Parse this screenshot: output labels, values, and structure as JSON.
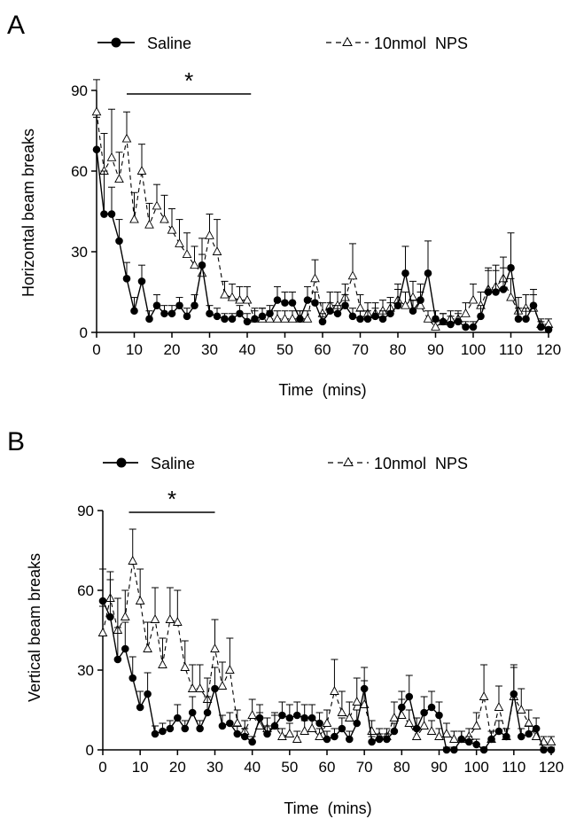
{
  "chart_data": [
    {
      "panel_letter": "A",
      "type": "line",
      "xlabel": "Time  (mins)",
      "ylabel": "Horizontal beam breaks",
      "xlim": [
        0,
        120
      ],
      "ylim": [
        0,
        90
      ],
      "xticks": [
        0,
        10,
        20,
        30,
        40,
        50,
        60,
        70,
        80,
        90,
        100,
        110,
        120
      ],
      "yticks": [
        0,
        30,
        60,
        90
      ],
      "significance": {
        "label": "*",
        "x_range": [
          8,
          41
        ]
      },
      "x": [
        0,
        2,
        4,
        6,
        8,
        10,
        12,
        14,
        16,
        18,
        20,
        22,
        24,
        26,
        28,
        30,
        32,
        34,
        36,
        38,
        40,
        42,
        44,
        46,
        48,
        50,
        52,
        54,
        56,
        58,
        60,
        62,
        64,
        66,
        68,
        70,
        72,
        74,
        76,
        78,
        80,
        82,
        84,
        86,
        88,
        90,
        92,
        94,
        96,
        98,
        100,
        102,
        104,
        106,
        108,
        110,
        112,
        114,
        116,
        118,
        120
      ],
      "series": [
        {
          "name": "Saline",
          "marker": "filled-circle",
          "line": "solid",
          "values": [
            68,
            44,
            44,
            34,
            20,
            8,
            19,
            5,
            10,
            7,
            7,
            10,
            6,
            10,
            25,
            7,
            6,
            5,
            5,
            7,
            4,
            5,
            6,
            7,
            12,
            11,
            11,
            5,
            12,
            11,
            4,
            8,
            7,
            10,
            6,
            5,
            5,
            6,
            5,
            7,
            10,
            22,
            8,
            12,
            22,
            5,
            4,
            3,
            4,
            2,
            2,
            6,
            15,
            15,
            16,
            24,
            5,
            5,
            10,
            2,
            1
          ],
          "err": [
            12,
            16,
            10,
            8,
            6,
            5,
            6,
            3,
            4,
            3,
            3,
            3,
            3,
            4,
            10,
            3,
            3,
            2,
            2,
            3,
            3,
            3,
            3,
            3,
            5,
            4,
            4,
            3,
            5,
            4,
            3,
            3,
            3,
            4,
            3,
            3,
            3,
            3,
            3,
            4,
            6,
            10,
            4,
            6,
            12,
            3,
            3,
            3,
            3,
            2,
            2,
            4,
            8,
            8,
            8,
            13,
            4,
            4,
            6,
            2,
            1
          ]
        },
        {
          "name": "10nmol  NPS",
          "marker": "open-triangle",
          "line": "dashed",
          "values": [
            82,
            60,
            65,
            57,
            72,
            42,
            60,
            40,
            47,
            42,
            38,
            33,
            29,
            25,
            22,
            36,
            30,
            14,
            13,
            12,
            12,
            5,
            5,
            5,
            5,
            5,
            5,
            5,
            5,
            20,
            7,
            10,
            10,
            13,
            21,
            9,
            7,
            7,
            8,
            9,
            12,
            10,
            13,
            10,
            5,
            2,
            4,
            5,
            5,
            7,
            12,
            10,
            16,
            17,
            20,
            13,
            8,
            9,
            9,
            3,
            3
          ],
          "err": [
            12,
            14,
            18,
            10,
            10,
            10,
            10,
            8,
            8,
            9,
            8,
            9,
            8,
            7,
            7,
            8,
            12,
            5,
            5,
            5,
            5,
            4,
            4,
            3,
            3,
            3,
            3,
            3,
            3,
            7,
            4,
            5,
            5,
            5,
            12,
            5,
            4,
            4,
            4,
            4,
            6,
            5,
            6,
            5,
            3,
            2,
            3,
            3,
            3,
            4,
            6,
            5,
            8,
            8,
            8,
            7,
            5,
            5,
            5,
            2,
            2
          ]
        }
      ]
    },
    {
      "panel_letter": "B",
      "type": "line",
      "xlabel": "Time  (mins)",
      "ylabel": "Vertical beam breaks",
      "xlim": [
        0,
        120
      ],
      "ylim": [
        0,
        90
      ],
      "xticks": [
        0,
        10,
        20,
        30,
        40,
        50,
        60,
        70,
        80,
        90,
        100,
        110,
        120
      ],
      "yticks": [
        0,
        30,
        60,
        90
      ],
      "significance": {
        "label": "*",
        "x_range": [
          7,
          30
        ]
      },
      "x": [
        0,
        2,
        4,
        6,
        8,
        10,
        12,
        14,
        16,
        18,
        20,
        22,
        24,
        26,
        28,
        30,
        32,
        34,
        36,
        38,
        40,
        42,
        44,
        46,
        48,
        50,
        52,
        54,
        56,
        58,
        60,
        62,
        64,
        66,
        68,
        70,
        72,
        74,
        76,
        78,
        80,
        82,
        84,
        86,
        88,
        90,
        92,
        94,
        96,
        98,
        100,
        102,
        104,
        106,
        108,
        110,
        112,
        114,
        116,
        118,
        120
      ],
      "series": [
        {
          "name": "Saline",
          "marker": "filled-circle",
          "line": "solid",
          "values": [
            56,
            50,
            34,
            38,
            27,
            16,
            21,
            6,
            7,
            8,
            12,
            8,
            14,
            8,
            14,
            23,
            9,
            10,
            6,
            5,
            3,
            12,
            6,
            9,
            13,
            12,
            13,
            12,
            12,
            10,
            4,
            5,
            8,
            4,
            10,
            23,
            3,
            4,
            4,
            7,
            16,
            20,
            8,
            14,
            16,
            13,
            0,
            0,
            4,
            3,
            2,
            0,
            4,
            7,
            5,
            21,
            5,
            6,
            8,
            0,
            0
          ],
          "err": [
            12,
            14,
            12,
            10,
            8,
            6,
            8,
            3,
            3,
            3,
            5,
            3,
            6,
            3,
            6,
            8,
            4,
            4,
            3,
            3,
            2,
            5,
            3,
            4,
            5,
            5,
            5,
            5,
            5,
            4,
            3,
            3,
            4,
            3,
            5,
            8,
            2,
            2,
            2,
            3,
            6,
            8,
            4,
            6,
            6,
            5,
            1,
            1,
            3,
            2,
            2,
            1,
            3,
            4,
            3,
            10,
            3,
            3,
            4,
            1,
            1
          ]
        },
        {
          "name": "10nmol  NPS",
          "marker": "open-triangle",
          "line": "dashed",
          "values": [
            44,
            57,
            45,
            50,
            71,
            56,
            38,
            49,
            32,
            49,
            48,
            31,
            23,
            23,
            19,
            38,
            24,
            30,
            10,
            7,
            13,
            9,
            8,
            9,
            5,
            6,
            4,
            7,
            8,
            5,
            10,
            22,
            14,
            12,
            18,
            17,
            7,
            5,
            5,
            12,
            13,
            10,
            5,
            9,
            7,
            5,
            6,
            4,
            4,
            5,
            9,
            20,
            4,
            16,
            5,
            20,
            15,
            10,
            5,
            3,
            3
          ],
          "err": [
            10,
            10,
            12,
            10,
            12,
            12,
            10,
            12,
            10,
            12,
            12,
            10,
            9,
            9,
            8,
            11,
            9,
            12,
            5,
            4,
            6,
            5,
            4,
            5,
            3,
            4,
            3,
            4,
            4,
            3,
            5,
            12,
            8,
            6,
            9,
            9,
            4,
            3,
            3,
            6,
            6,
            5,
            3,
            5,
            4,
            3,
            4,
            3,
            3,
            3,
            5,
            12,
            3,
            8,
            3,
            12,
            8,
            5,
            3,
            2,
            2
          ]
        }
      ]
    }
  ]
}
